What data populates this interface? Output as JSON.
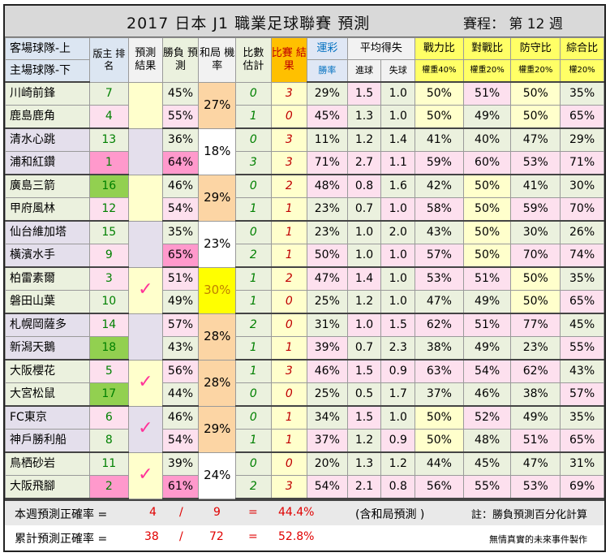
{
  "title": "2017 日本 J1 職業足球聯賽 預測",
  "round": "賽程： 第 12 週",
  "headers": {
    "team_top": "客場球隊-上",
    "team_bottom": "主場球隊-下",
    "rank": "版主 排名",
    "result_pred": "預測 結果",
    "win_pred": "勝負 預測",
    "draw_rate": "和局 機率",
    "score_est": "比數 估計",
    "score_result": "比賽 結果",
    "lottery": "運彩",
    "lottery_sub": "勝率",
    "avg_goals": "平均得失",
    "goals_for": "進球",
    "goals_against": "失球",
    "power": "戰力比",
    "power_w": "權重40%",
    "battle": "對戰比",
    "battle_w": "權重20%",
    "defense": "防守比",
    "defense_w": "權重20%",
    "overall": "綜合比",
    "overall_w": "權20%"
  },
  "games": [
    {
      "draw": "27%",
      "draw_hl": false,
      "check": false,
      "teams": [
        {
          "name": "川崎前鋒",
          "rank": "7",
          "win": "45%",
          "est": "0",
          "res": "3",
          "lot": "29%",
          "gf": "1.5",
          "ga": "1.0",
          "pw": "50%",
          "bt": "51%",
          "df": "50%",
          "ov": "35%"
        },
        {
          "name": "鹿島鹿角",
          "rank": "4",
          "win": "55%",
          "est": "1",
          "res": "0",
          "lot": "45%",
          "gf": "1.3",
          "ga": "1.0",
          "pw": "50%",
          "bt": "49%",
          "df": "50%",
          "ov": "65%"
        }
      ]
    },
    {
      "draw": "18%",
      "draw_hl": false,
      "check": false,
      "teams": [
        {
          "name": "清水心跳",
          "rank": "13",
          "win": "36%",
          "est": "0",
          "res": "3",
          "lot": "11%",
          "gf": "1.2",
          "ga": "1.4",
          "pw": "41%",
          "bt": "40%",
          "df": "47%",
          "ov": "29%"
        },
        {
          "name": "浦和紅鑽",
          "rank": "1",
          "win": "64%",
          "est": "3",
          "res": "3",
          "lot": "71%",
          "gf": "2.7",
          "ga": "1.1",
          "pw": "59%",
          "bt": "60%",
          "df": "53%",
          "ov": "71%"
        }
      ]
    },
    {
      "draw": "29%",
      "draw_hl": false,
      "check": false,
      "teams": [
        {
          "name": "廣島三箭",
          "rank": "16",
          "win": "46%",
          "est": "0",
          "res": "2",
          "lot": "48%",
          "gf": "0.8",
          "ga": "1.6",
          "pw": "42%",
          "bt": "50%",
          "df": "41%",
          "ov": "30%"
        },
        {
          "name": "甲府風林",
          "rank": "12",
          "win": "54%",
          "est": "1",
          "res": "1",
          "lot": "23%",
          "gf": "0.7",
          "ga": "1.0",
          "pw": "58%",
          "bt": "50%",
          "df": "59%",
          "ov": "70%"
        }
      ]
    },
    {
      "draw": "23%",
      "draw_hl": false,
      "check": false,
      "teams": [
        {
          "name": "仙台維加塔",
          "rank": "15",
          "win": "35%",
          "est": "0",
          "res": "1",
          "lot": "23%",
          "gf": "1.0",
          "ga": "2.0",
          "pw": "43%",
          "bt": "50%",
          "df": "30%",
          "ov": "26%"
        },
        {
          "name": "橫濱水手",
          "rank": "9",
          "win": "65%",
          "est": "2",
          "res": "1",
          "lot": "50%",
          "gf": "1.0",
          "ga": "1.0",
          "pw": "57%",
          "bt": "50%",
          "df": "70%",
          "ov": "74%"
        }
      ]
    },
    {
      "draw": "30%",
      "draw_hl": true,
      "check": true,
      "teams": [
        {
          "name": "柏雷素爾",
          "rank": "3",
          "win": "51%",
          "est": "1",
          "res": "2",
          "lot": "47%",
          "gf": "1.4",
          "ga": "1.0",
          "pw": "53%",
          "bt": "51%",
          "df": "50%",
          "ov": "35%"
        },
        {
          "name": "磐田山葉",
          "rank": "10",
          "win": "49%",
          "est": "1",
          "res": "0",
          "lot": "25%",
          "gf": "1.2",
          "ga": "1.0",
          "pw": "47%",
          "bt": "49%",
          "df": "50%",
          "ov": "65%"
        }
      ]
    },
    {
      "draw": "28%",
      "draw_hl": false,
      "check": false,
      "teams": [
        {
          "name": "札幌岡薩多",
          "rank": "14",
          "win": "57%",
          "est": "2",
          "res": "0",
          "lot": "31%",
          "gf": "1.0",
          "ga": "1.5",
          "pw": "62%",
          "bt": "51%",
          "df": "77%",
          "ov": "45%"
        },
        {
          "name": "新潟天鵝",
          "rank": "18",
          "win": "43%",
          "est": "1",
          "res": "1",
          "lot": "39%",
          "gf": "0.7",
          "ga": "2.3",
          "pw": "38%",
          "bt": "49%",
          "df": "23%",
          "ov": "55%"
        }
      ]
    },
    {
      "draw": "28%",
      "draw_hl": false,
      "check": true,
      "teams": [
        {
          "name": "大阪櫻花",
          "rank": "5",
          "win": "56%",
          "est": "1",
          "res": "3",
          "lot": "46%",
          "gf": "1.5",
          "ga": "0.9",
          "pw": "63%",
          "bt": "54%",
          "df": "62%",
          "ov": "43%"
        },
        {
          "name": "大宮松鼠",
          "rank": "17",
          "win": "44%",
          "est": "0",
          "res": "0",
          "lot": "25%",
          "gf": "0.5",
          "ga": "1.7",
          "pw": "37%",
          "bt": "46%",
          "df": "38%",
          "ov": "57%"
        }
      ]
    },
    {
      "draw": "29%",
      "draw_hl": false,
      "check": true,
      "teams": [
        {
          "name": "FC東京",
          "rank": "6",
          "win": "46%",
          "est": "0",
          "res": "1",
          "lot": "34%",
          "gf": "1.5",
          "ga": "1.0",
          "pw": "50%",
          "bt": "52%",
          "df": "49%",
          "ov": "35%"
        },
        {
          "name": "神戶勝利船",
          "rank": "8",
          "win": "54%",
          "est": "1",
          "res": "1",
          "lot": "37%",
          "gf": "1.2",
          "ga": "0.9",
          "pw": "50%",
          "bt": "48%",
          "df": "51%",
          "ov": "65%"
        }
      ]
    },
    {
      "draw": "24%",
      "draw_hl": false,
      "check": true,
      "teams": [
        {
          "name": "鳥栖砂岩",
          "rank": "11",
          "win": "39%",
          "est": "0",
          "res": "0",
          "lot": "20%",
          "gf": "1.3",
          "ga": "1.2",
          "pw": "44%",
          "bt": "45%",
          "df": "47%",
          "ov": "31%"
        },
        {
          "name": "大阪飛腳",
          "rank": "2",
          "win": "61%",
          "est": "2",
          "res": "3",
          "lot": "54%",
          "gf": "2.1",
          "ga": "0.8",
          "pw": "56%",
          "bt": "55%",
          "df": "53%",
          "ov": "69%"
        }
      ]
    }
  ],
  "footer": {
    "week_label": "本週預測正確率 =",
    "week_correct": "4",
    "slash": "/",
    "week_total": "9",
    "eq": "=",
    "week_pct": "44.4%",
    "note_draw": "(含和局預測 )",
    "note_right": "註：勝負預測百分化計算",
    "cum_label": "累計預測正確率 =",
    "cum_correct": "38",
    "cum_total": "72",
    "cum_pct": "52.8%",
    "credit": "無情真實的未來事件製作"
  },
  "colors": {
    "rank_highlight": "#ff99cc",
    "rank_low": "#92d050",
    "draw_highlight": "#ffff00",
    "check": "#ff3399"
  }
}
